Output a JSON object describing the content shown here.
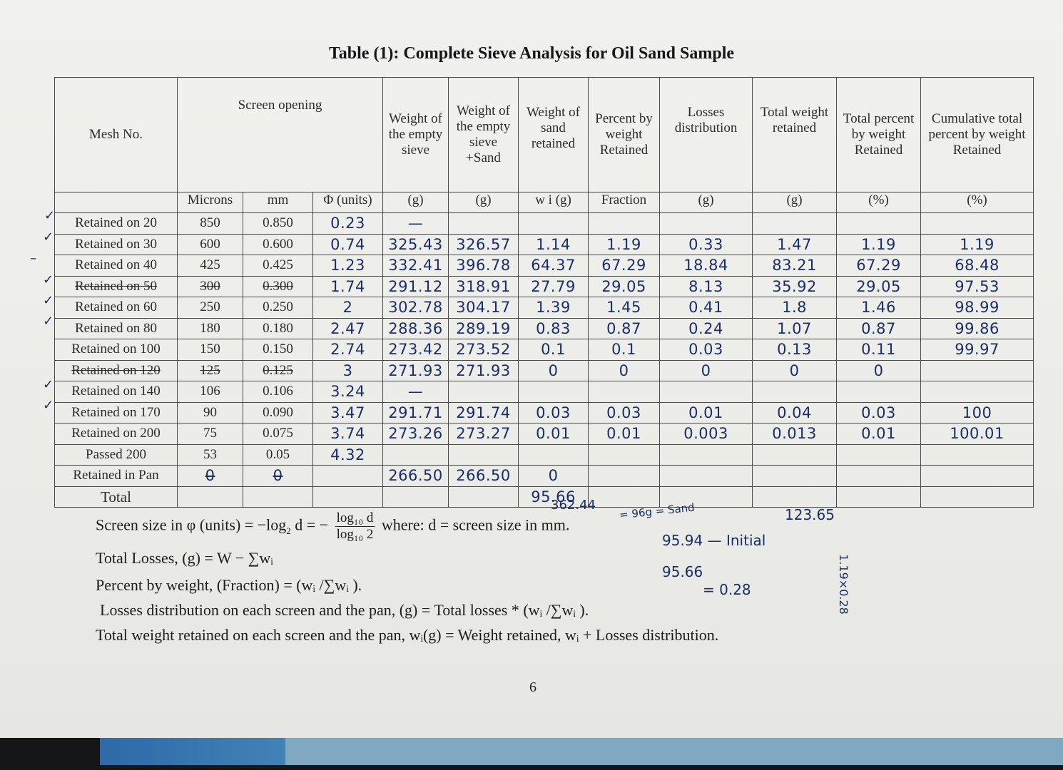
{
  "title": "Table (1): Complete Sieve Analysis for Oil Sand Sample",
  "headers": {
    "mesh": "Mesh No.",
    "screen_opening": "Screen opening",
    "microns": "Microns",
    "mm": "mm",
    "phi": "Φ (units)",
    "w_empty": "Weight of the empty sieve",
    "w_empty_unit": "(g)",
    "w_empty_sand": "Weight of the empty sieve +Sand",
    "w_empty_sand_unit": "(g)",
    "w_sand": "Weight of sand retained",
    "w_sand_unit": "w i (g)",
    "percent": "Percent by weight Retained",
    "percent_unit": "Fraction",
    "losses": "Losses distribution",
    "losses_unit": "(g)",
    "total_weight": "Total weight retained",
    "total_weight_unit": "(g)",
    "total_percent": "Total percent by weight Retained",
    "total_percent_unit": "(%)",
    "cumulative": "Cumulative total percent by weight Retained",
    "cumulative_unit": "(%)"
  },
  "rows": [
    {
      "mesh": "Retained on 20",
      "microns": "850",
      "mm": "0.850",
      "phi": "0.23",
      "w_empty": "—",
      "w_empty_sand": "",
      "w_sand": "",
      "percent": "",
      "losses": "",
      "total_weight": "",
      "total_percent": "",
      "cumulative": ""
    },
    {
      "mesh": "Retained on 30",
      "microns": "600",
      "mm": "0.600",
      "phi": "0.74",
      "w_empty": "325.43",
      "w_empty_sand": "326.57",
      "w_sand": "1.14",
      "percent": "1.19",
      "losses": "0.33",
      "total_weight": "1.47",
      "total_percent": "1.19",
      "cumulative": "1.19"
    },
    {
      "mesh": "Retained on 40",
      "microns": "425",
      "mm": "0.425",
      "phi": "1.23",
      "w_empty": "332.41",
      "w_empty_sand": "396.78",
      "w_sand": "64.37",
      "percent": "67.29",
      "losses": "18.84",
      "total_weight": "83.21",
      "total_percent": "67.29",
      "cumulative": "68.48"
    },
    {
      "mesh": "Retained on 50",
      "microns": "300",
      "mm": "0.300",
      "phi": "1.74",
      "w_empty": "291.12",
      "w_empty_sand": "318.91",
      "w_sand": "27.79",
      "percent": "29.05",
      "losses": "8.13",
      "total_weight": "35.92",
      "total_percent": "29.05",
      "cumulative": "97.53"
    },
    {
      "mesh": "Retained on 60",
      "microns": "250",
      "mm": "0.250",
      "phi": "2",
      "w_empty": "302.78",
      "w_empty_sand": "304.17",
      "w_sand": "1.39",
      "percent": "1.45",
      "losses": "0.41",
      "total_weight": "1.8",
      "total_percent": "1.46",
      "cumulative": "98.99"
    },
    {
      "mesh": "Retained on 80",
      "microns": "180",
      "mm": "0.180",
      "phi": "2.47",
      "w_empty": "288.36",
      "w_empty_sand": "289.19",
      "w_sand": "0.83",
      "percent": "0.87",
      "losses": "0.24",
      "total_weight": "1.07",
      "total_percent": "0.87",
      "cumulative": "99.86"
    },
    {
      "mesh": "Retained on 100",
      "microns": "150",
      "mm": "0.150",
      "phi": "2.74",
      "w_empty": "273.42",
      "w_empty_sand": "273.52",
      "w_sand": "0.1",
      "percent": "0.1",
      "losses": "0.03",
      "total_weight": "0.13",
      "total_percent": "0.11",
      "cumulative": "99.97"
    },
    {
      "mesh": "Retained on 120",
      "microns": "125",
      "mm": "0.125",
      "phi": "3",
      "w_empty": "271.93",
      "w_empty_sand": "271.93",
      "w_sand": "0",
      "percent": "0",
      "losses": "0",
      "total_weight": "0",
      "total_percent": "0",
      "cumulative": ""
    },
    {
      "mesh": "Retained on 140",
      "microns": "106",
      "mm": "0.106",
      "phi": "3.24",
      "w_empty": "—",
      "w_empty_sand": "",
      "w_sand": "",
      "percent": "",
      "losses": "",
      "total_weight": "",
      "total_percent": "",
      "cumulative": ""
    },
    {
      "mesh": "Retained on 170",
      "microns": "90",
      "mm": "0.090",
      "phi": "3.47",
      "w_empty": "291.71",
      "w_empty_sand": "291.74",
      "w_sand": "0.03",
      "percent": "0.03",
      "losses": "0.01",
      "total_weight": "0.04",
      "total_percent": "0.03",
      "cumulative": "100"
    },
    {
      "mesh": "Retained on 200",
      "microns": "75",
      "mm": "0.075",
      "phi": "3.74",
      "w_empty": "273.26",
      "w_empty_sand": "273.27",
      "w_sand": "0.01",
      "percent": "0.01",
      "losses": "0.003",
      "total_weight": "0.013",
      "total_percent": "0.01",
      "cumulative": "100.01"
    },
    {
      "mesh": "Passed 200",
      "microns": "53",
      "mm": "0.05",
      "phi": "4.32",
      "w_empty": "",
      "w_empty_sand": "",
      "w_sand": "",
      "percent": "",
      "losses": "",
      "total_weight": "",
      "total_percent": "",
      "cumulative": ""
    },
    {
      "mesh": "Retained in Pan",
      "microns": "0",
      "mm": "0",
      "phi": "",
      "w_empty": "266.50",
      "w_empty_sand": "266.50",
      "w_sand": "0",
      "percent": "",
      "losses": "",
      "total_weight": "",
      "total_percent": "",
      "cumulative": ""
    },
    {
      "mesh": "Total",
      "microns": "",
      "mm": "",
      "phi": "",
      "w_empty": "",
      "w_empty_sand": "",
      "w_sand": "95.66",
      "percent": "",
      "losses": "",
      "total_weight": "",
      "total_percent": "",
      "cumulative": ""
    }
  ],
  "notes": {
    "sum_empty": "362.44",
    "sand_note": "= 96g = Sand",
    "initial": "95.94 — Initial",
    "total_weight_sum": "123.65",
    "retained": "95.66",
    "difference": "= 0.28",
    "side_calc": "1.19×0.28"
  },
  "formulas": {
    "phi_lhs": "Screen size in φ (units) = −log",
    "phi_mid": " d = −",
    "phi_num": "log₁₀ d",
    "phi_den": "log₁₀ 2",
    "phi_rhs": " where: d = screen size in mm.",
    "losses": "Total Losses, (g) = W − ∑wᵢ",
    "percent": "Percent by weight, (Fraction) = (wᵢ /∑wᵢ ).",
    "distribution": "Losses distribution on each screen and the pan, (g) = Total losses * (wᵢ /∑wᵢ ).",
    "total": "Total weight retained on each screen and the pan, wᵢ(g) = Weight retained, wᵢ + Losses distribution."
  },
  "page_number": "6"
}
